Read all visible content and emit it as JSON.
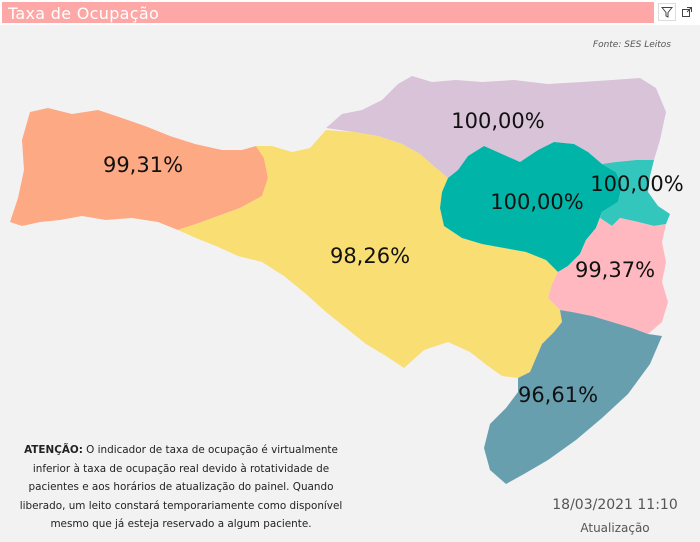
{
  "header": {
    "title": "Taxa de Ocupação",
    "filter_icon": "filter-icon",
    "expand_icon": "expand-icon"
  },
  "source": "Fonte: SES Leitos",
  "map": {
    "regions": [
      {
        "id": "west",
        "label": "99,31%",
        "value": 99.31,
        "color": "#fda983"
      },
      {
        "id": "planalto-norte",
        "label": "100,00%",
        "value": 100.0,
        "color": "#d8c3d8"
      },
      {
        "id": "center",
        "label": "98,26%",
        "value": 98.26,
        "color": "#f8de73"
      },
      {
        "id": "vale-itajai",
        "label": "100,00%",
        "value": 100.0,
        "color": "#00b5a8"
      },
      {
        "id": "foz-itajai",
        "label": "100,00%",
        "value": 100.0,
        "color": "#33c6bc"
      },
      {
        "id": "grande-florianopolis",
        "label": "99,37%",
        "value": 99.37,
        "color": "#ffb8bf"
      },
      {
        "id": "south",
        "label": "96,61%",
        "value": 96.61,
        "color": "#679faf"
      }
    ]
  },
  "warning": {
    "bold": "ATENÇÃO:",
    "text": " O indicador de taxa de ocupação é virtualmente inferior à taxa de ocupação real devido à rotatividade de pacientes e aos horários de atualização do painel.  Quando liberado, um leito constará temporariamente como disponível mesmo que já esteja reservado a algum paciente."
  },
  "update": {
    "datetime": "18/03/2021 11:10",
    "label": "Atualização"
  }
}
